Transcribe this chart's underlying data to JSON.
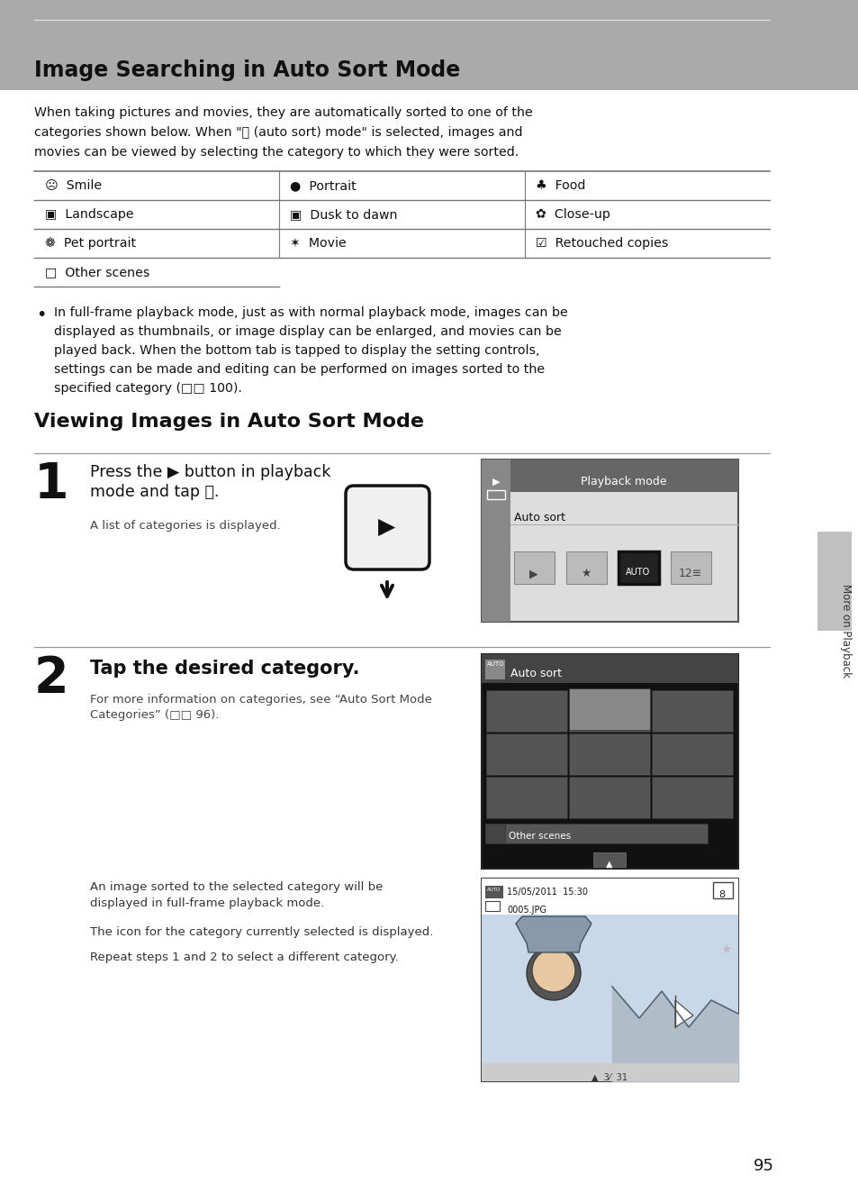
{
  "bg_color": "#ffffff",
  "header_bg": "#aaaaaa",
  "page_bg": "#f5f5f5",
  "header_text": "Image Searching in Auto Sort Mode",
  "page_num": "95",
  "sidebar_text": "More on Playback",
  "intro_lines": [
    "When taking pictures and movies, they are automatically sorted to one of the",
    "categories shown below. When \"Ⓐ (auto sort) mode\" is selected, images and",
    "movies can be viewed by selecting the category to which they were sorted."
  ],
  "table_data": [
    [
      "☹  Smile",
      "●  Portrait",
      "♣  Food"
    ],
    [
      "▣  Landscape",
      "▣  Dusk to dawn",
      "✿  Close-up"
    ],
    [
      "❁  Pet portrait",
      "✶  Movie",
      "☑  Retouched copies"
    ],
    [
      "□  Other scenes",
      "",
      ""
    ]
  ],
  "bullet_lines": [
    "In full-frame playback mode, just as with normal playback mode, images can be",
    "displayed as thumbnails, or image display can be enlarged, and movies can be",
    "played back. When the bottom tab is tapped to display the setting controls,",
    "settings can be made and editing can be performed on images sorted to the",
    "specified category (□□ 100)."
  ],
  "section2": "Viewing Images in Auto Sort Mode",
  "step1_line1": "Press the ▶ button in playback",
  "step1_line2": "mode and tap Ⓐ.",
  "step1_sub": "A list of categories is displayed.",
  "step2_title": "Tap the desired category.",
  "step2_sub1": "For more information on categories, see “Auto Sort Mode",
  "step2_sub2": "Categories” (□□ 96).",
  "extra1a": "An image sorted to the selected category will be",
  "extra1b": "displayed in full-frame playback mode.",
  "extra2": "The icon for the category currently selected is displayed.",
  "extra3": "Repeat steps 1 and 2 to select a different category."
}
